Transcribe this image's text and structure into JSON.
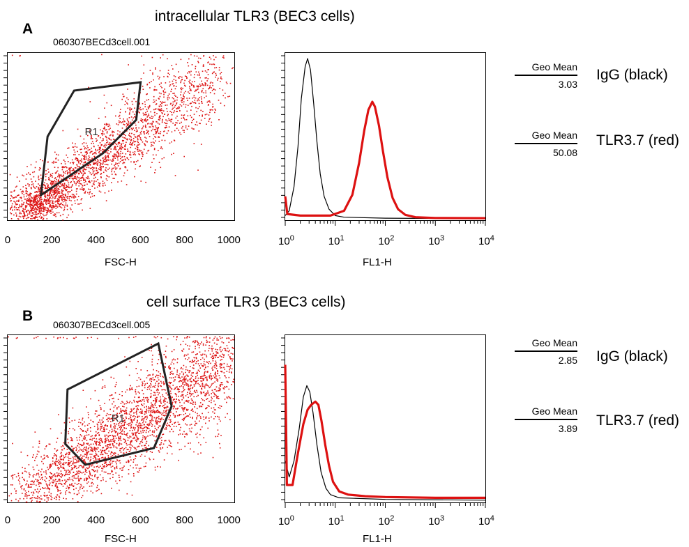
{
  "chart_data": [
    {
      "panel": "A",
      "title": "intracellular TLR3 (BEC3 cells)",
      "filename": "060307BECd3cell.001",
      "scatter": {
        "type": "scatter",
        "xlabel": "FSC-H",
        "xlim": [
          0,
          1023
        ],
        "xticks": [
          "0",
          "200",
          "400",
          "600",
          "800",
          "1000"
        ],
        "gate_label": "R1",
        "gate_polygon": [
          [
            150,
            60
          ],
          [
            180,
            200
          ],
          [
            300,
            310
          ],
          [
            600,
            330
          ],
          [
            580,
            240
          ],
          [
            430,
            160
          ]
        ]
      },
      "histogram": {
        "type": "line",
        "xscale": "log",
        "xlabel": "FL1-H",
        "xlim": [
          1,
          10000
        ],
        "xticks": [
          {
            "base": "10",
            "exp": "0"
          },
          {
            "base": "10",
            "exp": "1"
          },
          {
            "base": "10",
            "exp": "2"
          },
          {
            "base": "10",
            "exp": "3"
          },
          {
            "base": "10",
            "exp": "4"
          }
        ],
        "series": [
          {
            "color": "#000000",
            "width": 1.2,
            "points": [
              [
                1,
                0.02
              ],
              [
                1.2,
                0.05
              ],
              [
                1.5,
                0.2
              ],
              [
                1.8,
                0.45
              ],
              [
                2.1,
                0.75
              ],
              [
                2.5,
                0.95
              ],
              [
                2.8,
                1.0
              ],
              [
                3.2,
                0.93
              ],
              [
                3.7,
                0.72
              ],
              [
                4.3,
                0.48
              ],
              [
                5,
                0.28
              ],
              [
                6,
                0.14
              ],
              [
                7.5,
                0.06
              ],
              [
                10,
                0.02
              ],
              [
                15,
                0.01
              ],
              [
                100,
                0.004
              ],
              [
                1000,
                0.002
              ],
              [
                10000,
                0.002
              ]
            ]
          },
          {
            "color": "#dd1111",
            "width": 3.2,
            "points": [
              [
                1,
                0.14
              ],
              [
                1.1,
                0.03
              ],
              [
                2,
                0.02
              ],
              [
                4,
                0.02
              ],
              [
                8,
                0.02
              ],
              [
                15,
                0.05
              ],
              [
                22,
                0.15
              ],
              [
                30,
                0.35
              ],
              [
                38,
                0.55
              ],
              [
                46,
                0.68
              ],
              [
                55,
                0.73
              ],
              [
                62,
                0.7
              ],
              [
                75,
                0.58
              ],
              [
                90,
                0.42
              ],
              [
                110,
                0.26
              ],
              [
                140,
                0.13
              ],
              [
                180,
                0.06
              ],
              [
                250,
                0.025
              ],
              [
                400,
                0.01
              ],
              [
                1000,
                0.005
              ],
              [
                10000,
                0.004
              ]
            ]
          }
        ]
      },
      "legend": [
        {
          "label": "Geo Mean",
          "value": "3.03",
          "name": "IgG (black)"
        },
        {
          "label": "Geo Mean",
          "value": "50.08",
          "name": "TLR3.7 (red)"
        }
      ]
    },
    {
      "panel": "B",
      "title": "cell surface TLR3 (BEC3 cells)",
      "filename": "060307BECd3cell.005",
      "scatter": {
        "type": "scatter",
        "xlabel": "FSC-H",
        "xlim": [
          0,
          1023
        ],
        "xticks": [
          "0",
          "200",
          "400",
          "600",
          "800",
          "1000"
        ],
        "gate_label": "R1",
        "gate_polygon": [
          [
            260,
            140
          ],
          [
            270,
            270
          ],
          [
            680,
            380
          ],
          [
            740,
            230
          ],
          [
            660,
            130
          ],
          [
            350,
            90
          ]
        ]
      },
      "histogram": {
        "type": "line",
        "xscale": "log",
        "xlabel": "FL1-H",
        "xlim": [
          1,
          10000
        ],
        "xticks": [
          {
            "base": "10",
            "exp": "0"
          },
          {
            "base": "10",
            "exp": "1"
          },
          {
            "base": "10",
            "exp": "2"
          },
          {
            "base": "10",
            "exp": "3"
          },
          {
            "base": "10",
            "exp": "4"
          }
        ],
        "series": [
          {
            "color": "#000000",
            "width": 1.2,
            "points": [
              [
                1,
                0.25
              ],
              [
                1.2,
                0.15
              ],
              [
                1.5,
                0.25
              ],
              [
                1.9,
                0.45
              ],
              [
                2.3,
                0.65
              ],
              [
                2.7,
                0.72
              ],
              [
                3.1,
                0.68
              ],
              [
                3.6,
                0.55
              ],
              [
                4.3,
                0.35
              ],
              [
                5.2,
                0.18
              ],
              [
                6.5,
                0.08
              ],
              [
                8,
                0.04
              ],
              [
                12,
                0.02
              ],
              [
                100,
                0.01
              ],
              [
                10000,
                0.005
              ]
            ]
          },
          {
            "color": "#dd1111",
            "width": 3.2,
            "points": [
              [
                1,
                0.85
              ],
              [
                1.08,
                0.1
              ],
              [
                1.4,
                0.1
              ],
              [
                1.8,
                0.3
              ],
              [
                2.3,
                0.48
              ],
              [
                2.8,
                0.57
              ],
              [
                3.3,
                0.6
              ],
              [
                4,
                0.62
              ],
              [
                4.6,
                0.6
              ],
              [
                5.3,
                0.5
              ],
              [
                6.3,
                0.35
              ],
              [
                7.5,
                0.22
              ],
              [
                9,
                0.12
              ],
              [
                12,
                0.06
              ],
              [
                18,
                0.04
              ],
              [
                40,
                0.03
              ],
              [
                100,
                0.025
              ],
              [
                1000,
                0.02
              ],
              [
                10000,
                0.02
              ]
            ]
          }
        ]
      },
      "legend": [
        {
          "label": "Geo Mean",
          "value": "2.85",
          "name": "IgG (black)"
        },
        {
          "label": "Geo Mean",
          "value": "3.89",
          "name": "TLR3.7 (red)"
        }
      ]
    }
  ]
}
